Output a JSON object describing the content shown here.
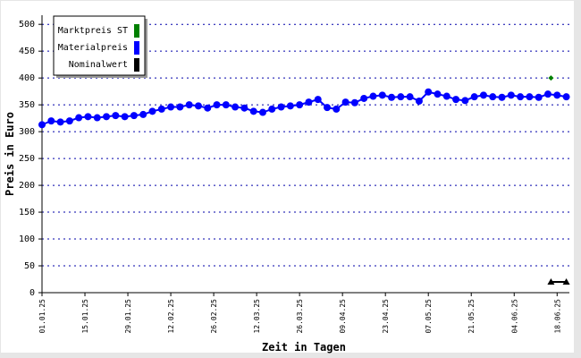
{
  "chart_data": {
    "type": "line",
    "xlabel": "Zeit in Tagen",
    "ylabel": "Preis in Euro",
    "xlim": [
      "01.01.25",
      "22.06.25"
    ],
    "xticks": [
      "01.01.25",
      "15.01.25",
      "29.01.25",
      "12.02.25",
      "26.02.25",
      "12.03.25",
      "26.03.25",
      "09.04.25",
      "23.04.25",
      "07.05.25",
      "21.05.25",
      "04.06.25",
      "18.06.25"
    ],
    "ylim": [
      0,
      517
    ],
    "yticks": [
      0,
      50,
      100,
      150,
      200,
      250,
      300,
      350,
      400,
      450,
      500
    ],
    "grid": true,
    "legend": "top-left",
    "series": [
      {
        "name": "Marktpreis ST",
        "color": "#008000",
        "marker": "diamond",
        "x": [
          "16.06.25"
        ],
        "values": [
          400
        ]
      },
      {
        "name": "Materialpreis",
        "color": "#0000ff",
        "marker": "circle",
        "x": [
          "01.01.25",
          "04.01.25",
          "07.01.25",
          "10.01.25",
          "13.01.25",
          "16.01.25",
          "19.01.25",
          "22.01.25",
          "25.01.25",
          "28.01.25",
          "31.01.25",
          "03.02.25",
          "06.02.25",
          "09.02.25",
          "12.02.25",
          "15.02.25",
          "18.02.25",
          "21.02.25",
          "24.02.25",
          "27.02.25",
          "02.03.25",
          "05.03.25",
          "08.03.25",
          "11.03.25",
          "14.03.25",
          "17.03.25",
          "20.03.25",
          "23.03.25",
          "26.03.25",
          "29.03.25",
          "01.04.25",
          "04.04.25",
          "07.04.25",
          "10.04.25",
          "13.04.25",
          "16.04.25",
          "19.04.25",
          "22.04.25",
          "25.04.25",
          "28.04.25",
          "01.05.25",
          "04.05.25",
          "07.05.25",
          "10.05.25",
          "13.05.25",
          "16.05.25",
          "19.05.25",
          "22.05.25",
          "25.05.25",
          "28.05.25",
          "31.05.25",
          "03.06.25",
          "06.06.25",
          "09.06.25",
          "12.06.25",
          "15.06.25",
          "18.06.25",
          "21.06.25"
        ],
        "values": [
          313,
          320,
          318,
          320,
          326,
          328,
          326,
          328,
          330,
          328,
          330,
          332,
          338,
          342,
          346,
          346,
          350,
          348,
          344,
          350,
          350,
          346,
          344,
          338,
          336,
          342,
          346,
          348,
          350,
          355,
          360,
          345,
          342,
          355,
          354,
          362,
          366,
          368,
          364,
          365,
          365,
          357,
          374,
          370,
          366,
          360,
          358,
          365,
          368,
          365,
          364,
          368,
          365,
          365,
          364,
          370,
          368,
          365
        ]
      },
      {
        "name": "Nominalwert",
        "color": "#000000",
        "marker": "triangle",
        "x": [
          "16.06.25",
          "21.06.25"
        ],
        "values": [
          20,
          20
        ]
      }
    ]
  }
}
